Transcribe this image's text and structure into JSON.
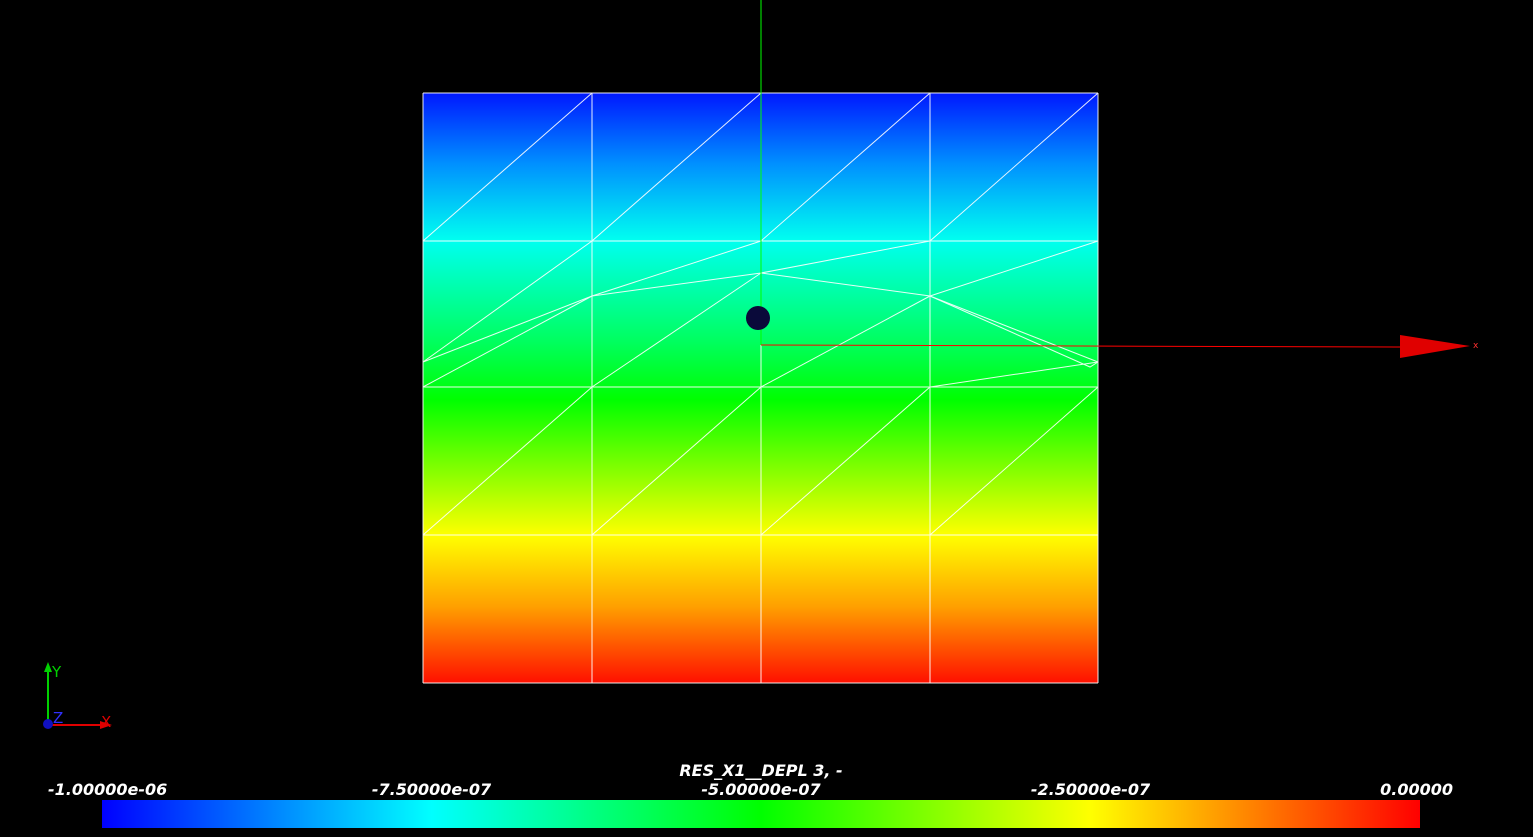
{
  "view": {
    "axis_x_label": "x",
    "orientation": {
      "y": "Y",
      "z": "Z",
      "x": "X"
    }
  },
  "colorbar": {
    "title": "RES_X1__DEPL 3, -",
    "labels": [
      "-1.00000e-06",
      "-7.50000e-07",
      "-5.00000e-07",
      "-2.50000e-07",
      "0.00000"
    ]
  }
}
